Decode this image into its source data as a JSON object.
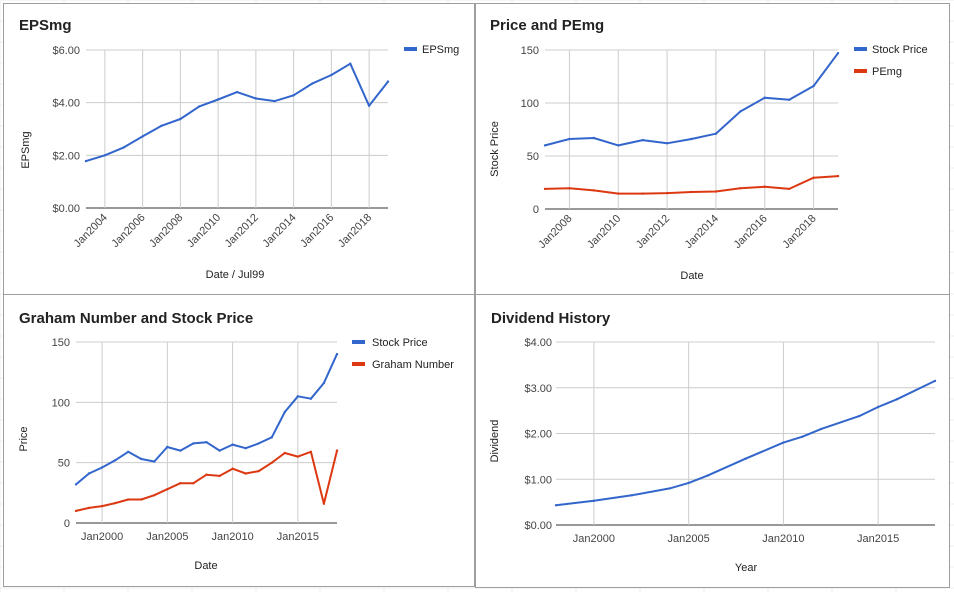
{
  "colors": {
    "blue": "#3366cc",
    "red": "#dc3912"
  },
  "chart_data": [
    {
      "id": "p1",
      "type": "line",
      "title": "EPSmg",
      "xlabel": "Date / Jul99",
      "ylabel": "EPSmg",
      "ylim": [
        0,
        6
      ],
      "yticks": [
        0,
        2,
        4,
        6
      ],
      "ytick_labels": [
        "$0.00",
        "$2.00",
        "$4.00",
        "$6.00"
      ],
      "xlim": [
        2003,
        2019
      ],
      "xticks": [
        2004,
        2006,
        2008,
        2010,
        2012,
        2014,
        2016,
        2018
      ],
      "xtick_labels": [
        "Jan2004",
        "Jan2006",
        "Jan2008",
        "Jan2010",
        "Jan2012",
        "Jan2014",
        "Jan2016",
        "Jan2018"
      ],
      "grid": true,
      "legend_position": "right",
      "series": [
        {
          "name": "EPSmg",
          "color": "#3366cc",
          "x": [
            2003,
            2004,
            2005,
            2006,
            2007,
            2008,
            2009,
            2010,
            2011,
            2012,
            2013,
            2014,
            2015,
            2016,
            2017,
            2018,
            2019
          ],
          "y": [
            1.78,
            2.0,
            2.3,
            2.72,
            3.12,
            3.38,
            3.86,
            4.12,
            4.4,
            4.16,
            4.06,
            4.28,
            4.73,
            5.05,
            5.48,
            3.88,
            4.8
          ]
        }
      ]
    },
    {
      "id": "p2",
      "type": "line",
      "title": "Price and PEmg",
      "xlabel": "Date",
      "ylabel": "Stock Price",
      "ylim": [
        0,
        150
      ],
      "yticks": [
        0,
        50,
        100,
        150
      ],
      "ytick_labels": [
        "0",
        "50",
        "100",
        "150"
      ],
      "xlim": [
        2007,
        2019
      ],
      "xticks": [
        2008,
        2010,
        2012,
        2014,
        2016,
        2018
      ],
      "xtick_labels": [
        "Jan2008",
        "Jan2010",
        "Jan2012",
        "Jan2014",
        "Jan2016",
        "Jan2018"
      ],
      "grid": true,
      "legend_position": "right",
      "series": [
        {
          "name": "Stock Price",
          "color": "#3366cc",
          "x": [
            2007,
            2008,
            2009,
            2010,
            2011,
            2012,
            2013,
            2014,
            2015,
            2016,
            2017,
            2018,
            2019
          ],
          "y": [
            60,
            66,
            67,
            60,
            65,
            62,
            66,
            71,
            92,
            105,
            103,
            116,
            147
          ]
        },
        {
          "name": "PEmg",
          "color": "#dc3912",
          "x": [
            2007,
            2008,
            2009,
            2010,
            2011,
            2012,
            2013,
            2014,
            2015,
            2016,
            2017,
            2018,
            2019
          ],
          "y": [
            19,
            19.5,
            17.5,
            14.5,
            14.5,
            15,
            16,
            16.5,
            19.5,
            21,
            19,
            29.5,
            31
          ]
        }
      ]
    },
    {
      "id": "p3",
      "type": "line",
      "title": "Graham Number and Stock Price",
      "xlabel": "Date",
      "ylabel": "Price",
      "ylim": [
        0,
        150
      ],
      "yticks": [
        0,
        50,
        100,
        150
      ],
      "ytick_labels": [
        "0",
        "50",
        "100",
        "150"
      ],
      "xlim": [
        1998,
        2018
      ],
      "xticks": [
        2000,
        2005,
        2010,
        2015
      ],
      "xtick_labels": [
        "Jan2000",
        "Jan2005",
        "Jan2010",
        "Jan2015"
      ],
      "grid": true,
      "legend_position": "right",
      "series": [
        {
          "name": "Stock Price",
          "color": "#3366cc",
          "x": [
            1998,
            1999,
            2000,
            2001,
            2002,
            2003,
            2004,
            2005,
            2006,
            2007,
            2008,
            2009,
            2010,
            2011,
            2012,
            2013,
            2014,
            2015,
            2016,
            2017,
            2018
          ],
          "y": [
            32,
            41,
            46,
            52,
            59,
            53,
            51,
            63,
            60,
            66,
            67,
            60,
            65,
            62,
            66,
            71,
            92,
            105,
            103,
            116,
            140
          ]
        },
        {
          "name": "Graham Number",
          "color": "#dc3912",
          "x": [
            1998,
            1999,
            2000,
            2001,
            2002,
            2003,
            2004,
            2005,
            2006,
            2007,
            2008,
            2009,
            2010,
            2011,
            2012,
            2013,
            2014,
            2015,
            2016,
            2017,
            2018
          ],
          "y": [
            10,
            12.5,
            14,
            16.5,
            19.5,
            19.5,
            23,
            28,
            33,
            33,
            40,
            39,
            45,
            41,
            43,
            50,
            58,
            55,
            59,
            16,
            60
          ]
        }
      ]
    },
    {
      "id": "p4",
      "type": "line",
      "title": "Dividend History",
      "xlabel": "Year",
      "ylabel": "Dividend",
      "ylim": [
        0,
        4
      ],
      "yticks": [
        0,
        1,
        2,
        3,
        4
      ],
      "ytick_labels": [
        "$0.00",
        "$1.00",
        "$2.00",
        "$3.00",
        "$4.00"
      ],
      "xlim": [
        1998,
        2018
      ],
      "xticks": [
        2000,
        2005,
        2010,
        2015
      ],
      "xtick_labels": [
        "Jan2000",
        "Jan2005",
        "Jan2010",
        "Jan2015"
      ],
      "grid": true,
      "legend_position": "none",
      "series": [
        {
          "name": "",
          "color": "#3366cc",
          "x": [
            1998,
            2000,
            2002,
            2004,
            2005,
            2006,
            2008,
            2010,
            2011,
            2012,
            2014,
            2015,
            2016,
            2018
          ],
          "y": [
            0.43,
            0.53,
            0.65,
            0.8,
            0.92,
            1.08,
            1.45,
            1.8,
            1.93,
            2.1,
            2.38,
            2.58,
            2.75,
            3.15
          ]
        }
      ]
    }
  ]
}
